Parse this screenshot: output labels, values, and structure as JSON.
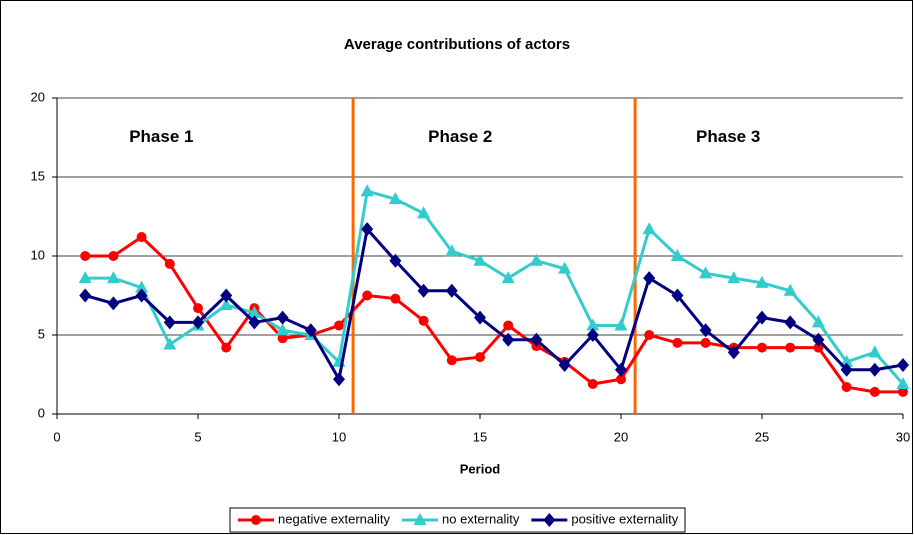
{
  "chart_data": {
    "type": "line",
    "title": "Average contributions of actors",
    "x_label": "Period",
    "x": [
      1,
      2,
      3,
      4,
      5,
      6,
      7,
      8,
      9,
      10,
      11,
      12,
      13,
      14,
      15,
      16,
      17,
      18,
      19,
      20,
      21,
      22,
      23,
      24,
      25,
      26,
      27,
      28,
      29,
      30
    ],
    "series": [
      {
        "name": "negative externality",
        "color": "#ff0000",
        "marker": "circle",
        "values": [
          10,
          10,
          11.2,
          9.5,
          6.7,
          4.2,
          6.7,
          4.8,
          5,
          5.6,
          7.5,
          7.3,
          5.9,
          3.4,
          3.6,
          5.6,
          4.3,
          3.3,
          1.9,
          2.2,
          5,
          4.5,
          4.5,
          4.2,
          4.2,
          4.2,
          4.2,
          1.7,
          1.4,
          1.4
        ]
      },
      {
        "name": "no externality",
        "color": "#33cccc",
        "marker": "triangle",
        "values": [
          8.6,
          8.6,
          8,
          4.4,
          5.6,
          6.9,
          6.4,
          5.3,
          5,
          3.3,
          14.1,
          13.6,
          12.7,
          10.3,
          9.7,
          8.6,
          9.7,
          9.2,
          5.6,
          5.6,
          11.7,
          10,
          8.9,
          8.6,
          8.3,
          7.8,
          5.8,
          3.3,
          3.9,
          1.9
        ]
      },
      {
        "name": "positive externality",
        "color": "#000080",
        "marker": "diamond",
        "values": [
          7.5,
          7,
          7.5,
          5.8,
          5.8,
          7.5,
          5.8,
          6.1,
          5.3,
          2.2,
          11.7,
          9.7,
          7.8,
          7.8,
          6.1,
          4.7,
          4.7,
          3.1,
          5,
          2.8,
          8.6,
          7.5,
          5.3,
          3.9,
          6.1,
          5.8,
          4.7,
          2.8,
          2.8,
          3.1
        ]
      }
    ],
    "xlim": [
      0,
      30
    ],
    "xticks": [
      0,
      5,
      10,
      15,
      20,
      25,
      30
    ],
    "ylim": [
      0,
      20
    ],
    "yticks": [
      0,
      5,
      10,
      15,
      20
    ],
    "grid": true,
    "vlines": {
      "color": "#ff6600",
      "values": [
        10.5,
        20.5
      ]
    },
    "annotations": [
      {
        "text": "Phase 1",
        "x": 3.7,
        "y": 17.5
      },
      {
        "text": "Phase 2",
        "x": 14.3,
        "y": 17.5
      },
      {
        "text": "Phase 3",
        "x": 23.8,
        "y": 17.5
      }
    ],
    "annotation_color": "#ff6600",
    "legend": "bottom"
  }
}
